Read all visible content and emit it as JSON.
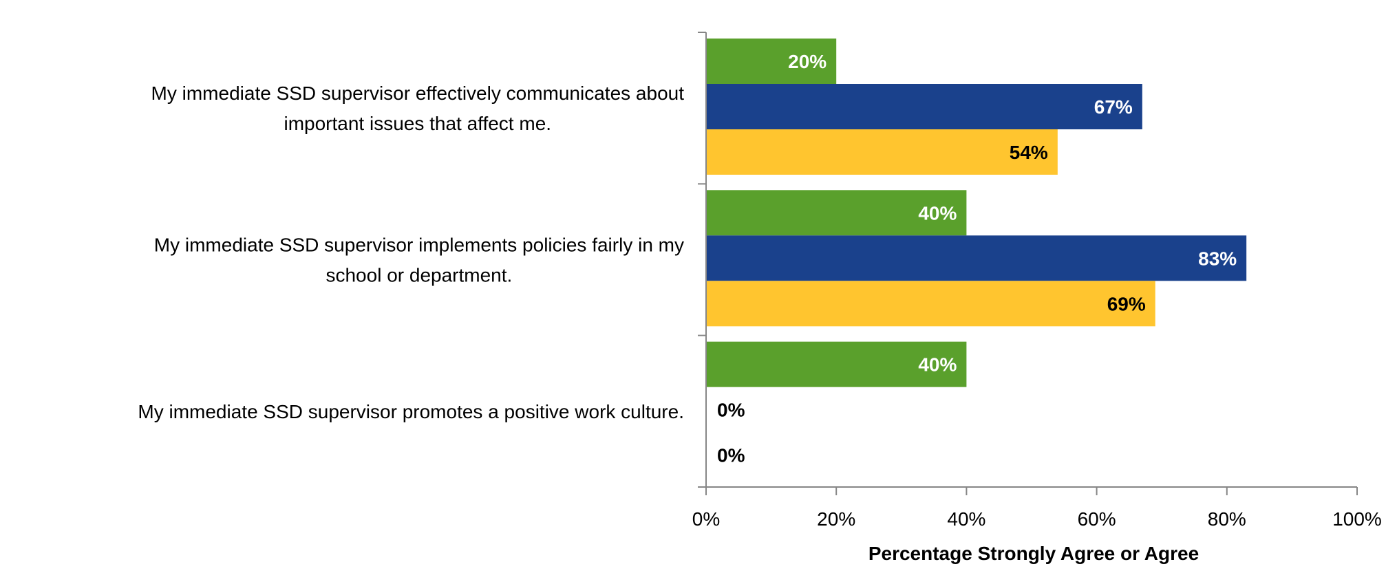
{
  "chart_data": {
    "type": "bar",
    "orientation": "horizontal",
    "categories": [
      [
        "My immediate SSD supervisor effectively communicates about",
        "important issues that affect me."
      ],
      [
        "My immediate SSD supervisor implements policies fairly in my",
        "school or department."
      ],
      [
        "My immediate SSD supervisor promotes a positive work culture."
      ]
    ],
    "series": [
      {
        "color": "#5aa02c",
        "label_color": "#ffffff",
        "values": [
          20,
          40,
          40
        ],
        "labels": [
          "20%",
          "40%",
          "40%"
        ]
      },
      {
        "color": "#1a418c",
        "label_color": "#ffffff",
        "values": [
          67,
          83,
          0
        ],
        "labels": [
          "67%",
          "83%",
          "0%"
        ]
      },
      {
        "color": "#ffc52f",
        "label_color": "#000000",
        "values": [
          54,
          69,
          0
        ],
        "labels": [
          "54%",
          "69%",
          "0%"
        ]
      }
    ],
    "xlim": [
      0,
      100
    ],
    "xticks": [
      0,
      20,
      40,
      60,
      80,
      100
    ],
    "xtick_labels": [
      "0%",
      "20%",
      "40%",
      "60%",
      "80%",
      "100%"
    ],
    "xlabel": "Percentage Strongly Agree or Agree",
    "ylabel": "",
    "title": "",
    "grid": false,
    "legend": "none"
  }
}
